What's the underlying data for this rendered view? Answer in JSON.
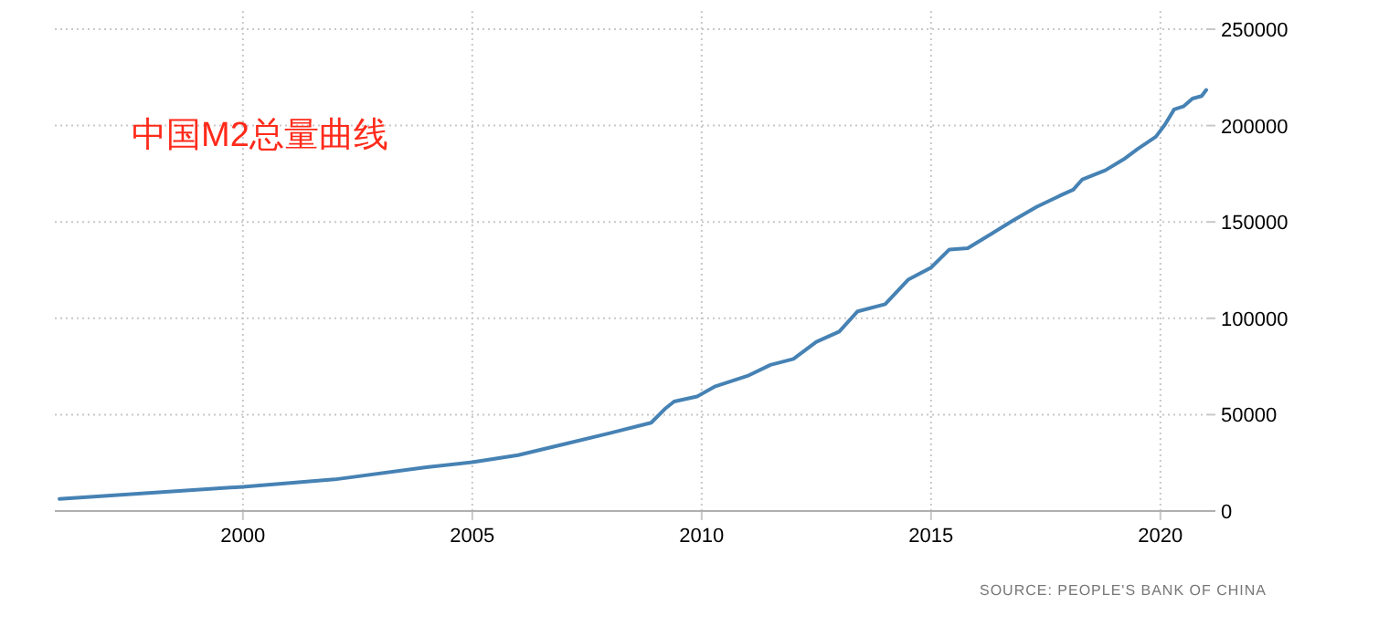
{
  "chart_data": {
    "type": "line",
    "title": "中国M2总量曲线",
    "x": [
      1996.0,
      2000.0,
      2002.0,
      2004.0,
      2005.0,
      2006.0,
      2007.0,
      2008.0,
      2008.9,
      2009.2,
      2009.4,
      2009.9,
      2010.3,
      2011.0,
      2011.5,
      2012.0,
      2012.5,
      2013.0,
      2013.4,
      2014.0,
      2014.5,
      2015.0,
      2015.4,
      2015.8,
      2016.3,
      2016.8,
      2017.3,
      2017.8,
      2018.1,
      2018.3,
      2018.8,
      2019.2,
      2019.5,
      2019.9,
      2020.1,
      2020.3,
      2020.5,
      2020.7,
      2020.9,
      2021.0
    ],
    "series": [
      {
        "color": "#4682b4",
        "values": [
          6300,
          12600,
          16400,
          22700,
          25300,
          29000,
          34700,
          40400,
          45800,
          53000,
          56800,
          59400,
          64700,
          70100,
          75800,
          78900,
          87800,
          93100,
          103600,
          107300,
          120000,
          126300,
          135700,
          136400,
          143600,
          150900,
          157800,
          163500,
          166700,
          172100,
          176800,
          182500,
          187800,
          194200,
          200500,
          208400,
          209900,
          214000,
          215300,
          218500
        ]
      }
    ],
    "xlim": [
      1995.9,
      2021.0
    ],
    "xticks": [
      2000,
      2005,
      2010,
      2015,
      2020
    ],
    "ylim": [
      0,
      250000
    ],
    "yticks": [
      0,
      50000,
      100000,
      150000,
      200000,
      250000
    ],
    "grid": true,
    "marker": "none",
    "line_style": "solid",
    "annotations": [
      "SOURCE: PEOPLE'S BANK OF CHINA"
    ]
  }
}
